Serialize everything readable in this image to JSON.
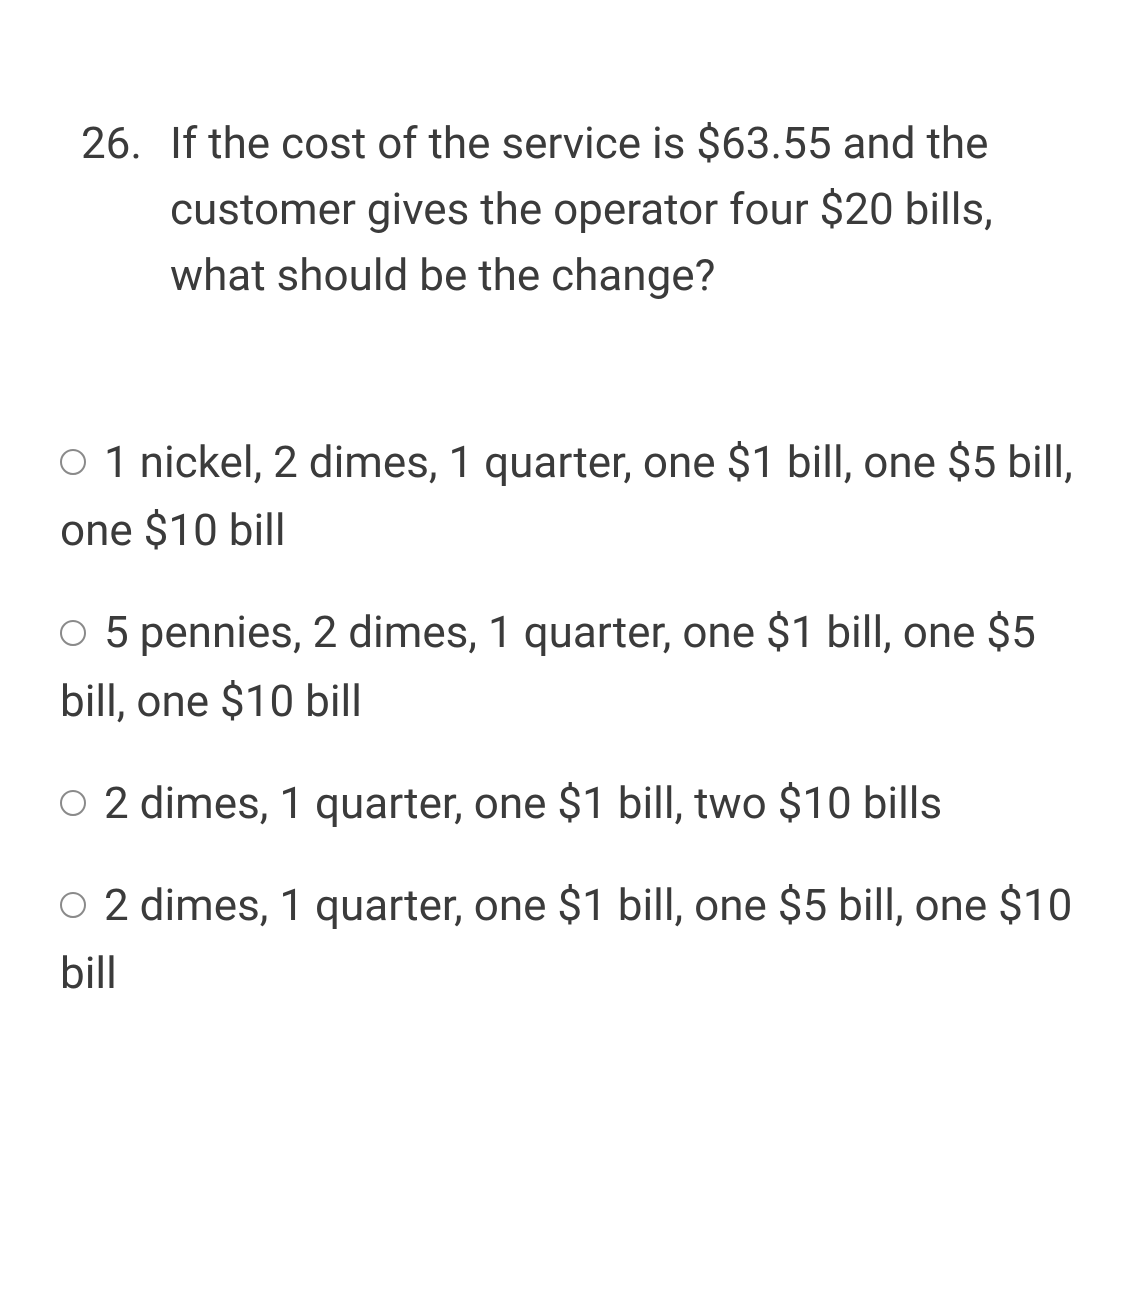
{
  "question": {
    "number": "26.",
    "text": "If the cost of the service is $63.55 and the customer gives the operator four $20 bills, what should be the change?"
  },
  "options": [
    {
      "label": "1 nickel, 2 dimes, 1 quarter, one $1 bill, one $5 bill, one $10 bill"
    },
    {
      "label": "5 pennies, 2 dimes, 1 quarter, one $1 bill, one $5 bill, one $10 bill"
    },
    {
      "label": "2 dimes, 1 quarter, one $1 bill, two $10 bills"
    },
    {
      "label": "2 dimes, 1 quarter, one $1 bill, one $5 bill, one $10 bill"
    }
  ],
  "style": {
    "text_color": "#3b3b3b",
    "radio_border_color": "#8a8a8a",
    "background_color": "#ffffff",
    "question_fontsize": 44,
    "option_fontsize": 44
  }
}
